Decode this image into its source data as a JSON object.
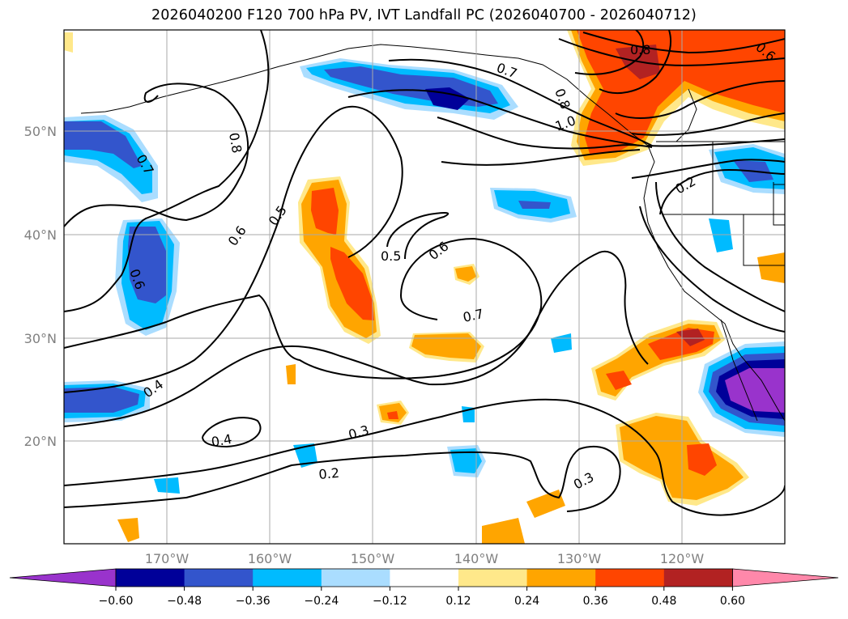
{
  "title": "2026040200 F120 700 hPa PV, IVT Landfall PC (2026040700 - 2026040712)",
  "lat_labels": [
    "50°N",
    "40°N",
    "30°N",
    "20°N"
  ],
  "lon_labels": [
    "170°W",
    "160°W",
    "150°W",
    "140°W",
    "130°W",
    "120°W"
  ],
  "contour_labels": [
    "0.8",
    "0.7",
    "0.6",
    "0.5",
    "0.6",
    "0.5",
    "0.6",
    "0.7",
    "0.4",
    "0.4",
    "0.3",
    "0.2",
    "0.3",
    "0.2",
    "0.7",
    "0.8",
    "0.6",
    "1.0",
    "0.8"
  ],
  "colorbar": {
    "ticks": [
      "−0.60",
      "−0.48",
      "−0.36",
      "−0.24",
      "−0.12",
      "0.12",
      "0.24",
      "0.36",
      "0.48",
      "0.60"
    ],
    "colors": [
      "#9933cc",
      "#000099",
      "#3355cc",
      "#00bbff",
      "#aaddff",
      "#ffffff",
      "#ffe88a",
      "#ffa500",
      "#ff4500",
      "#b22222",
      "#ff88aa"
    ]
  }
}
